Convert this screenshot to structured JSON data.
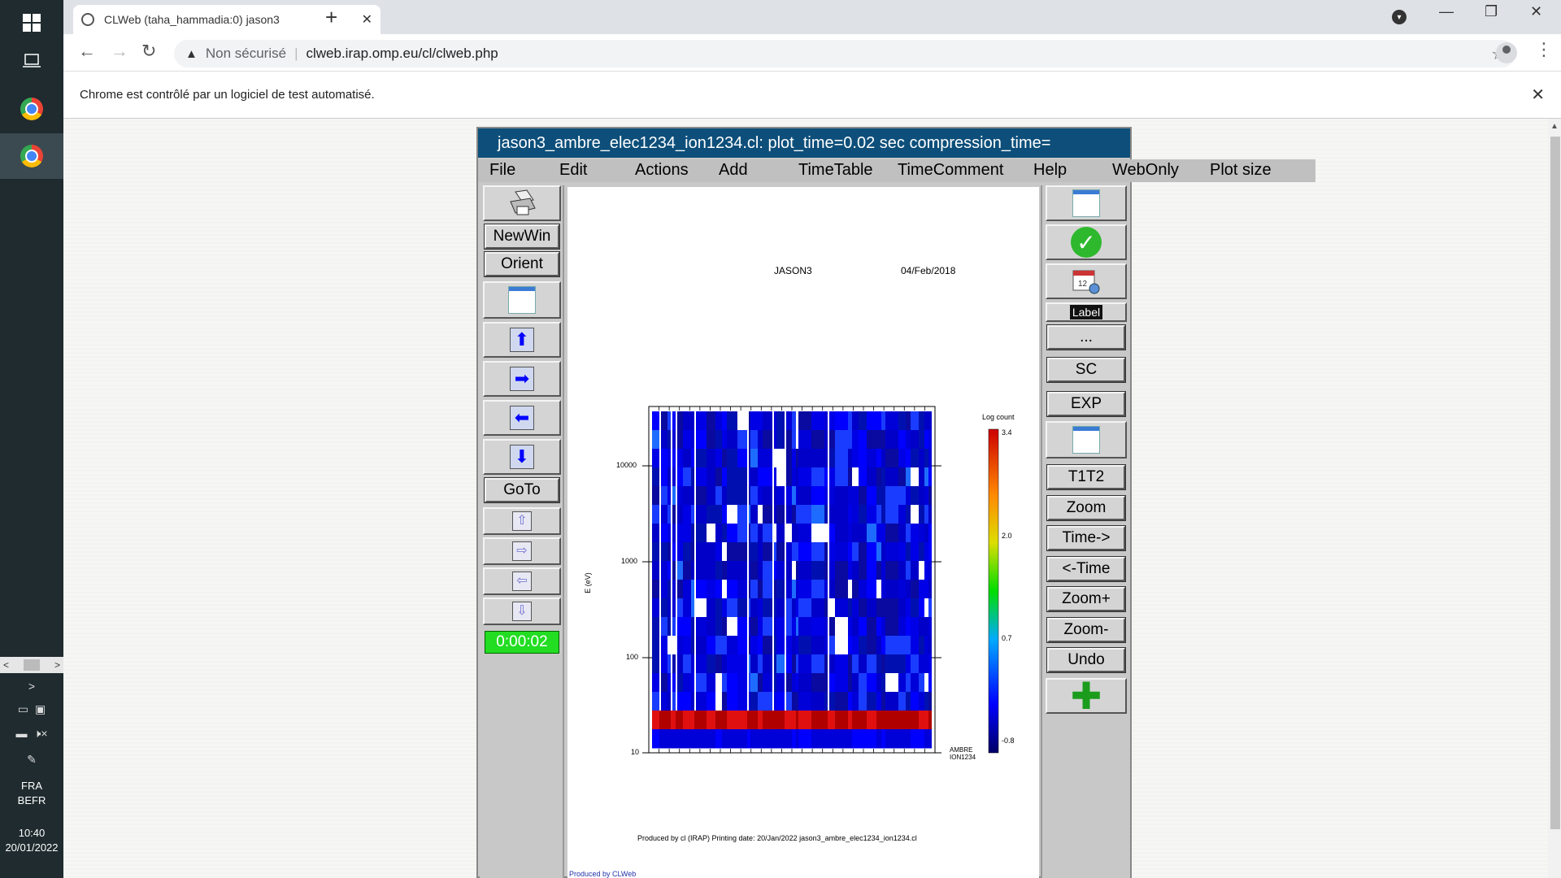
{
  "browser": {
    "tab_title": "CLWeb (taha_hammadia:0) jason3",
    "security_label": "Non sécurisé",
    "url": "clweb.irap.omp.eu/cl/clweb.php",
    "infobar_text": "Chrome est contrôlé par un logiciel de test automatisé."
  },
  "taskbar": {
    "lang_1": "FRA",
    "lang_2": "BEFR",
    "time": "10:40",
    "date": "20/01/2022"
  },
  "clweb": {
    "title": "jason3_ambre_elec1234_ion1234.cl:     plot_time=0.02 sec  compression_time=",
    "menu": [
      "File",
      "Edit",
      "Actions",
      "Add",
      "TimeTable",
      "TimeComment",
      "Help",
      "WebOnly",
      "Plot size"
    ],
    "left": {
      "newwin": "NewWin",
      "orient": "Orient",
      "goto": "GoTo",
      "timer": "0:00:02"
    },
    "right": {
      "label": "Label",
      "dots": "...",
      "sc": "SC",
      "exp": "EXP",
      "t1t2": "T1T2",
      "zoom": "Zoom",
      "time_fwd": "Time->",
      "time_back": "<-Time",
      "zoom_plus": "Zoom+",
      "zoom_minus": "Zoom-",
      "undo": "Undo"
    }
  },
  "plot": {
    "mission": "JASON3",
    "date": "04/Feb/2018",
    "ylabel": "E (eV)",
    "ytick_labels": [
      "10000",
      "1000",
      "100",
      "10"
    ],
    "colorbar_title": "Log count",
    "colorbar_ticks": [
      "3.4",
      "2.0",
      "0.7",
      "-0.8"
    ],
    "instrument_line1": "AMBRE",
    "instrument_line2": "ION1234",
    "footer": "Produced by cl (IRAP)    Printing date: 20/Jan/2022     jason3_ambre_elec1234_ion1234.cl",
    "bottom_link": "Produced by CLWeb"
  },
  "chart_data": {
    "type": "heatmap",
    "title": "JASON3  04/Feb/2018",
    "xlabel": "",
    "ylabel": "E (eV)",
    "y_scale": "log",
    "ylim": [
      10,
      20000
    ],
    "y_ticks": [
      10,
      100,
      1000,
      10000
    ],
    "colorbar": {
      "label": "Log count",
      "range": [
        -0.8,
        3.4
      ],
      "ticks": [
        3.4,
        2.0,
        0.7,
        -0.8
      ]
    },
    "legend": "AMBRE ION1234",
    "note": "Spectrogram dominated by low counts (blue) with a high-count band (red) near 20-30 eV across the full time range."
  },
  "colors": {
    "title_bar": "#0d4f7a",
    "timer_bg": "#22dd22",
    "panel_bg": "#c8c8c8"
  }
}
